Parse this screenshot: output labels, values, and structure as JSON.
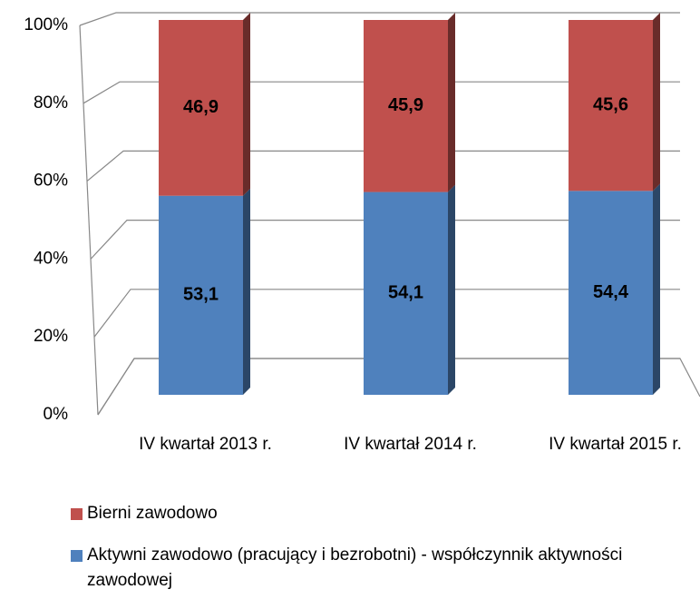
{
  "chart_data": {
    "type": "bar3d_stacked",
    "categories": [
      "IV kwartał 2013 r.",
      "IV kwartał 2014 r.",
      "IV kwartał 2015 r."
    ],
    "series": [
      {
        "name": "Aktywni zawodowo (pracujący i bezrobotni) - współczynnik aktywności zawodowej",
        "color": "#4f81bd",
        "values": [
          53.1,
          54.1,
          54.4
        ],
        "value_labels": [
          "53,1",
          "54,1",
          "54,4"
        ]
      },
      {
        "name": "Bierni zawodowo",
        "color": "#c0504d",
        "values": [
          46.9,
          45.9,
          45.6
        ],
        "value_labels": [
          "46,9",
          "45,9",
          "45,6"
        ]
      }
    ],
    "ylim": [
      0,
      100
    ],
    "yticks": [
      {
        "value": 0,
        "label": "0%"
      },
      {
        "value": 20,
        "label": "20%"
      },
      {
        "value": 40,
        "label": "40%"
      },
      {
        "value": 60,
        "label": "60%"
      },
      {
        "value": 80,
        "label": "80%"
      },
      {
        "value": 100,
        "label": "100%"
      }
    ],
    "grid": true
  }
}
